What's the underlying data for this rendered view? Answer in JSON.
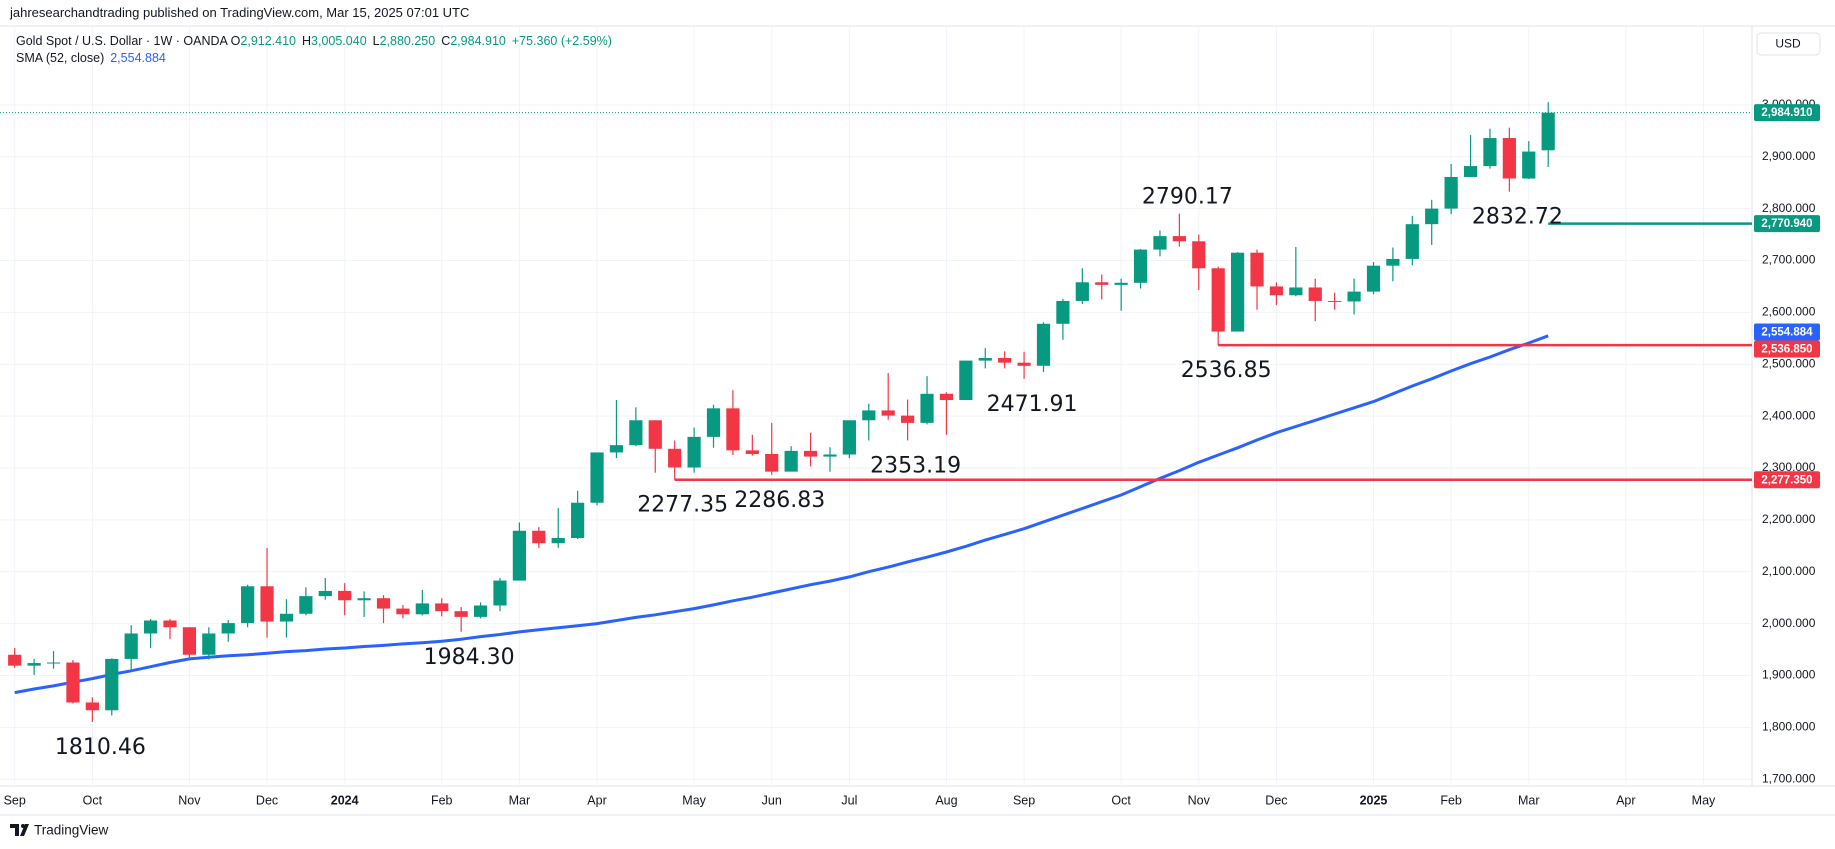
{
  "header": {
    "publisher": "jahresearchandtrading published on TradingView.com, Mar 15, 2025 07:01 UTC",
    "brand": "TradingView"
  },
  "chart_data": {
    "type": "candlestick",
    "title": "Gold Spot / U.S. Dollar · 1W · OANDA",
    "quote": [
      {
        "key": "O",
        "value": 2912.41,
        "label": "2,912.410"
      },
      {
        "key": "H",
        "value": 3005.04,
        "label": "3,005.040"
      },
      {
        "key": "L",
        "value": 2880.25,
        "label": "2,880.250"
      },
      {
        "key": "C",
        "value": 2984.91,
        "label": "2,984.910"
      }
    ],
    "change": {
      "value": 75.36,
      "label": "+75.360 (+2.59%)"
    },
    "currency": "USD",
    "categories": [
      "Sep",
      null,
      null,
      null,
      "Oct",
      null,
      null,
      null,
      null,
      "Nov",
      null,
      null,
      null,
      "Dec",
      null,
      null,
      null,
      "2024",
      null,
      null,
      null,
      null,
      "Feb",
      null,
      null,
      null,
      "Mar",
      null,
      null,
      null,
      "Apr",
      null,
      null,
      null,
      null,
      "May",
      null,
      null,
      null,
      "Jun",
      null,
      null,
      null,
      "Jul",
      null,
      null,
      null,
      null,
      "Aug",
      null,
      null,
      null,
      "Sep",
      null,
      null,
      null,
      null,
      "Oct",
      null,
      null,
      null,
      "Nov",
      null,
      null,
      null,
      "Dec",
      null,
      null,
      null,
      null,
      "2025",
      null,
      null,
      null,
      "Feb",
      null,
      null,
      null,
      "Mar",
      null,
      null,
      null,
      null,
      "Apr",
      null,
      null,
      null,
      "May",
      null,
      null
    ],
    "open": [
      1940,
      1919,
      1924,
      1925,
      1848,
      1833,
      1932,
      1981,
      2006,
      1993,
      1940,
      1981,
      2001,
      2072,
      2004,
      2019,
      2053,
      2063,
      2045,
      2049,
      2029,
      2018,
      2039,
      2024,
      2013,
      2035,
      2083,
      2179,
      2155,
      2165,
      2233,
      2330,
      2344,
      2392,
      2337,
      2301,
      2360,
      2415,
      2334,
      2327,
      2293,
      2333,
      2322,
      2326,
      2392,
      2411,
      2401,
      2387,
      2443,
      2431,
      2507,
      2512,
      2503,
      2497,
      2578,
      2622,
      2658,
      2653,
      2657,
      2721,
      2747,
      2737,
      2685,
      2563,
      2715,
      2650,
      2633,
      2648,
      2622,
      2621,
      2640,
      2690,
      2703,
      2770,
      2800,
      2861,
      2882,
      2936,
      2858,
      2912.41,
      null,
      null,
      null,
      null,
      null,
      null,
      null,
      null,
      null,
      null
    ],
    "high": [
      1953,
      1932,
      1947,
      1930,
      1858,
      1933,
      1997,
      2009,
      2009,
      1993,
      1993,
      2007,
      2075,
      2146,
      2047,
      2070,
      2088,
      2078,
      2062,
      2055,
      2036,
      2065,
      2049,
      2032,
      2041,
      2088,
      2195,
      2186,
      2223,
      2256,
      2330,
      2431,
      2417,
      2392,
      2353,
      2378,
      2422,
      2450,
      2364,
      2387,
      2342,
      2368,
      2340,
      2392,
      2424,
      2483,
      2432,
      2477,
      2446,
      2507,
      2531,
      2525,
      2524,
      2581,
      2626,
      2685,
      2673,
      2665,
      2722,
      2758,
      2790.17,
      2750,
      2688,
      2716,
      2721,
      2658,
      2726,
      2665,
      2638,
      2665,
      2697,
      2725,
      2786,
      2817,
      2886,
      2942,
      2954,
      2956,
      2930,
      3005.04,
      null,
      null,
      null,
      null,
      null,
      null,
      null,
      null,
      null,
      null
    ],
    "low": [
      1915,
      1901,
      1913,
      1846,
      1810.46,
      1823,
      1908,
      1953,
      1970,
      1932,
      1931,
      1965,
      1993,
      1973,
      1973,
      2016,
      2046,
      2016,
      2013,
      2001,
      2010,
      2016,
      2014,
      1984.3,
      2010,
      2024,
      2083,
      2146,
      2146,
      2163,
      2228,
      2319,
      2342,
      2291,
      2277.35,
      2291,
      2339,
      2325,
      2324,
      2286.83,
      2297,
      2303,
      2293,
      2319,
      2353,
      2393,
      2353.19,
      2384,
      2364,
      2431,
      2492,
      2492,
      2471.91,
      2485,
      2547,
      2616,
      2625,
      2603,
      2646,
      2708,
      2727,
      2643,
      2536.85,
      2563,
      2605,
      2614,
      2631,
      2583,
      2605,
      2596,
      2635,
      2660,
      2691,
      2730,
      2789,
      2863,
      2877,
      2832.72,
      2857,
      2880.25,
      null,
      null,
      null,
      null,
      null,
      null,
      null,
      null,
      null,
      null
    ],
    "close": [
      1919,
      1924,
      1925,
      1848,
      1833,
      1932,
      1981,
      2006,
      1993,
      1940,
      1981,
      2001,
      2072,
      2004,
      2019,
      2053,
      2063,
      2045,
      2049,
      2029,
      2018,
      2039,
      2024,
      2013,
      2035,
      2083,
      2179,
      2155,
      2165,
      2233,
      2330,
      2344,
      2392,
      2337,
      2301,
      2360,
      2415,
      2334,
      2327,
      2293,
      2333,
      2322,
      2326,
      2392,
      2411,
      2401,
      2387,
      2443,
      2431,
      2507,
      2512,
      2503,
      2497,
      2578,
      2622,
      2658,
      2653,
      2657,
      2721,
      2747,
      2737,
      2685,
      2563,
      2715,
      2650,
      2633,
      2648,
      2622,
      2621,
      2640,
      2690,
      2703,
      2770,
      2800,
      2861,
      2882,
      2936,
      2858,
      2910,
      2984.91,
      null,
      null,
      null,
      null,
      null,
      null,
      null,
      null,
      null,
      null
    ],
    "up_color": "#089981",
    "down_color": "#f23645",
    "sma": {
      "name": "SMA (52, close)",
      "color": "#2962ff",
      "values": [
        1867,
        1874,
        1880,
        1887,
        1894,
        1902,
        1909,
        1917,
        1925,
        1932,
        1935,
        1938,
        1940,
        1943,
        1946,
        1948,
        1951,
        1953,
        1956,
        1958,
        1961,
        1963,
        1966,
        1970,
        1975,
        1979,
        1984,
        1988,
        1992,
        1996,
        2000,
        2006,
        2012,
        2017,
        2023,
        2029,
        2036,
        2044,
        2051,
        2059,
        2067,
        2075,
        2082,
        2090,
        2100,
        2109,
        2119,
        2128,
        2138,
        2149,
        2161,
        2172,
        2183,
        2196,
        2209,
        2222,
        2235,
        2248,
        2264,
        2280,
        2295,
        2311,
        2325,
        2339,
        2354,
        2368,
        2380,
        2392,
        2404,
        2416,
        2428,
        2443,
        2458,
        2472,
        2487,
        2501,
        2514,
        2528,
        2541,
        2554.884,
        null,
        null,
        null,
        null,
        null,
        null,
        null,
        null,
        null,
        null
      ],
      "last": {
        "value": 2554.884,
        "label": "2,554.884"
      }
    },
    "last_price": {
      "value": 2984.91,
      "label": "2,984.910"
    },
    "levels": [
      {
        "value": 2277.35,
        "label": "2,277.350",
        "color": "#f23645"
      },
      {
        "value": 2536.85,
        "label": "2,536.850",
        "color": "#f23645"
      },
      {
        "value": 2770.94,
        "label": "2,770.940",
        "color": "#089981"
      }
    ],
    "annotations": [
      1810.46,
      {
        "value": 1984.3,
        "label": "1984.30"
      },
      2277.35,
      2286.83,
      2353.19,
      2471.91,
      2536.85,
      2790.17,
      2832.72
    ],
    "ylim": [
      1687,
      3152
    ],
    "yticks": [
      {
        "value": 1700,
        "label": "1,700.000"
      },
      {
        "value": 1800,
        "label": "1,800.000"
      },
      {
        "value": 1900,
        "label": "1,900.000"
      },
      {
        "value": 2000,
        "label": "2,000.000"
      },
      {
        "value": 2100,
        "label": "2,100.000"
      },
      {
        "value": 2200,
        "label": "2,200.000"
      },
      {
        "value": 2300,
        "label": "2,300.000"
      },
      {
        "value": 2400,
        "label": "2,400.000"
      },
      {
        "value": 2500,
        "label": "2,500.000"
      },
      {
        "value": 2600,
        "label": "2,600.000"
      },
      {
        "value": 2700,
        "label": "2,700.000"
      },
      {
        "value": 2800,
        "label": "2,800.000"
      },
      {
        "value": 2900,
        "label": "2,900.000"
      },
      {
        "value": 3000,
        "label": "3,000.000"
      }
    ],
    "grid": true
  }
}
